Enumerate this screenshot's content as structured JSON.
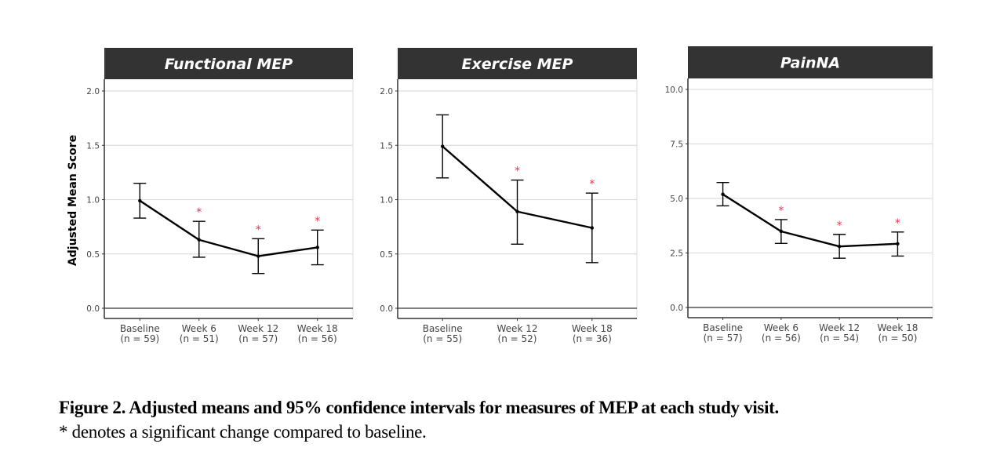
{
  "figure": {
    "caption_title": "Figure 2. Adjusted means and 95% confidence intervals for measures of MEP at each study visit.",
    "caption_note": "* denotes a significant change compared to baseline."
  },
  "chart_data": [
    {
      "type": "line",
      "title": "Functional MEP",
      "xlabel": "",
      "ylabel": "Adjusted Mean Score",
      "ylim": [
        0,
        2.0
      ],
      "yticks": [
        0.0,
        0.5,
        1.0,
        1.5,
        2.0
      ],
      "ytick_labels": [
        "0.0",
        "0.5",
        "1.0",
        "1.5",
        "2.0"
      ],
      "grid": true,
      "categories": [
        "Baseline",
        "Week 6",
        "Week 12",
        "Week 18"
      ],
      "n_labels": [
        "(n = 59)",
        "(n = 51)",
        "(n = 57)",
        "(n = 56)"
      ],
      "means": [
        0.99,
        0.63,
        0.48,
        0.56
      ],
      "ci_lower": [
        0.83,
        0.47,
        0.32,
        0.4
      ],
      "ci_upper": [
        1.15,
        0.8,
        0.64,
        0.72
      ],
      "significant": [
        false,
        true,
        true,
        true
      ],
      "significance_marker": "*"
    },
    {
      "type": "line",
      "title": "Exercise MEP",
      "xlabel": "",
      "ylabel": "",
      "ylim": [
        0,
        2.0
      ],
      "yticks": [
        0.0,
        0.5,
        1.0,
        1.5,
        2.0
      ],
      "ytick_labels": [
        "0.0",
        "0.5",
        "1.0",
        "1.5",
        "2.0"
      ],
      "grid": true,
      "categories": [
        "Baseline",
        "Week 12",
        "Week 18"
      ],
      "n_labels": [
        "(n = 55)",
        "(n = 52)",
        "(n = 36)"
      ],
      "means": [
        1.49,
        0.89,
        0.74
      ],
      "ci_lower": [
        1.2,
        0.59,
        0.42
      ],
      "ci_upper": [
        1.78,
        1.18,
        1.06
      ],
      "significant": [
        false,
        true,
        true
      ],
      "significance_marker": "*"
    },
    {
      "type": "line",
      "title": "PainNA",
      "xlabel": "",
      "ylabel": "",
      "ylim": [
        0,
        10.0
      ],
      "yticks": [
        0.0,
        2.5,
        5.0,
        7.5,
        10.0
      ],
      "ytick_labels": [
        "0.0",
        "2.5",
        "5.0",
        "7.5",
        "10.0"
      ],
      "grid": true,
      "categories": [
        "Baseline",
        "Week 6",
        "Week 12",
        "Week 18"
      ],
      "n_labels": [
        "(n = 57)",
        "(n = 56)",
        "(n = 54)",
        "(n = 50)"
      ],
      "means": [
        5.19,
        3.49,
        2.8,
        2.92
      ],
      "ci_lower": [
        4.66,
        2.94,
        2.26,
        2.36
      ],
      "ci_upper": [
        5.73,
        4.03,
        3.35,
        3.46
      ],
      "significant": [
        false,
        true,
        true,
        true
      ],
      "significance_marker": "*"
    }
  ],
  "colors": {
    "strip_background": "#333333",
    "strip_text": "#ffffff",
    "line": "#000000",
    "gridline": "#dddddd",
    "zero_line": "#555555",
    "axis": "#333333",
    "tick_label": "#444444",
    "significance": "#e8344e"
  }
}
